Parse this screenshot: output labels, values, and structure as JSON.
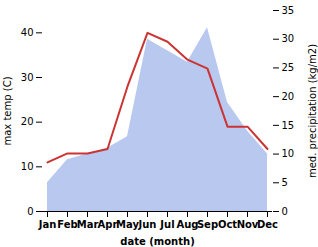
{
  "chart_data": {
    "type": "line",
    "xlabel": "date (month)",
    "ylabel": "max temp (C)",
    "y2label": "med. precipitation (kg/m2)",
    "categories": [
      "Jan",
      "Feb",
      "Mar",
      "Apr",
      "May",
      "Jun",
      "Jul",
      "Aug",
      "Sep",
      "Oct",
      "Nov",
      "Dec"
    ],
    "series": [
      {
        "type": "area",
        "axis": "y2",
        "color": "#b8c8ee",
        "values": [
          5,
          9,
          10,
          11,
          13,
          30,
          28,
          26,
          32,
          19,
          14,
          10
        ]
      },
      {
        "type": "line",
        "color": "#cc3333",
        "values": [
          11,
          13,
          13,
          14,
          28,
          40,
          38,
          34,
          32,
          19,
          19,
          14
        ]
      }
    ],
    "ylim": [
      0,
      45
    ],
    "yticks": [
      0,
      10,
      20,
      30,
      40
    ],
    "y2lim": [
      0,
      35
    ],
    "y2ticks": [
      0,
      5,
      10,
      15,
      20,
      25,
      30,
      35
    ]
  }
}
